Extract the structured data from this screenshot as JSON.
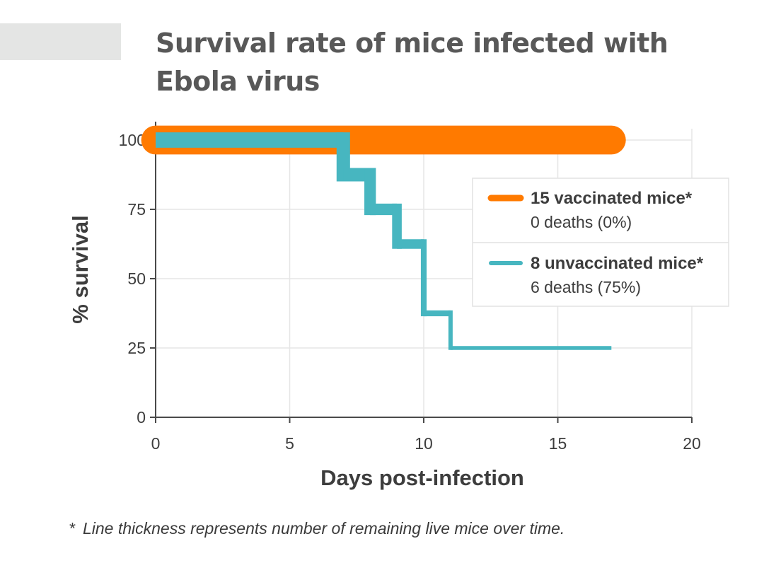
{
  "title": "Survival rate of mice infected with Ebola virus",
  "footnote": {
    "marker": "*",
    "text": "Line thickness represents number of remaining live mice over time."
  },
  "colors": {
    "vaccinated": "#ff7a00",
    "unvaccinated": "#47b6c0",
    "axis": "#4a4a4a",
    "grid": "#e6e6e6",
    "text": "#3d3d3d"
  },
  "chart_data": {
    "type": "line",
    "xlabel": "Days post-infection",
    "ylabel": "% survival",
    "xlim": [
      0,
      20
    ],
    "ylim": [
      0,
      100
    ],
    "xticks": [
      0,
      5,
      10,
      15,
      20
    ],
    "yticks": [
      0,
      25,
      50,
      75,
      100
    ],
    "grid": true,
    "legend_position": "right",
    "series": [
      {
        "key": "vaccinated",
        "name": "15 vaccinated mice*",
        "subtitle": "0 deaths (0%)",
        "step": true,
        "x": [
          0,
          17
        ],
        "y": [
          100,
          100
        ],
        "live_mice": [
          15
        ]
      },
      {
        "key": "unvaccinated",
        "name": "8 unvaccinated mice*",
        "subtitle": "6 deaths (75%)",
        "step": true,
        "x": [
          0,
          7,
          8,
          9,
          10,
          11,
          17
        ],
        "y": [
          100,
          87.5,
          75,
          62.5,
          37.5,
          25,
          25
        ],
        "live_mice": [
          8,
          7,
          6,
          5,
          3,
          2
        ]
      }
    ]
  }
}
